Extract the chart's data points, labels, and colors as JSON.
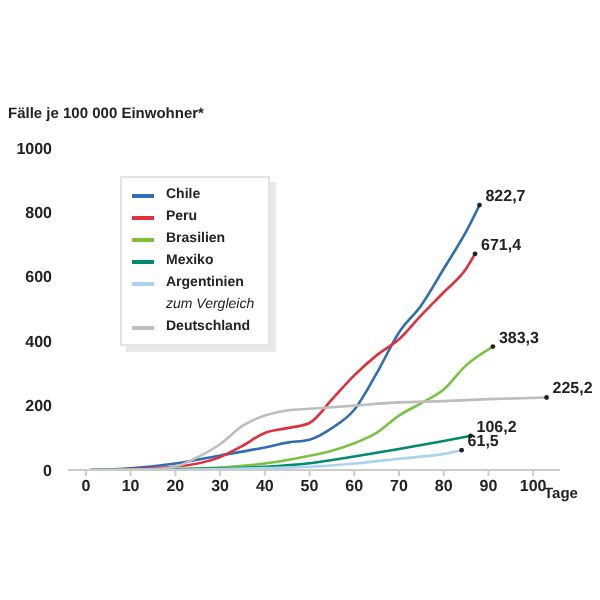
{
  "chart_data": {
    "type": "line",
    "ylabel": "Fälle je 100 000 Einwohner*",
    "xlabel": "Tage",
    "xlim": [
      -4,
      106
    ],
    "xticks": [
      0,
      10,
      20,
      30,
      40,
      50,
      60,
      70,
      80,
      90,
      100
    ],
    "ylim": [
      0,
      1000
    ],
    "yticks": [
      0,
      200,
      400,
      600,
      800,
      1000
    ],
    "grid": false,
    "legend": "top left",
    "marker": "none",
    "line_style": "solid",
    "annotations": [
      "zum Vergleich"
    ],
    "series": [
      {
        "name": "Chile",
        "color": "#2f6db5",
        "x": [
          1,
          10,
          20,
          30,
          40,
          45,
          50,
          55,
          60,
          65,
          70,
          75,
          80,
          85,
          88
        ],
        "values": [
          0,
          5,
          20,
          45,
          70,
          85,
          94,
          130,
          187,
          300,
          427,
          512,
          625,
          740,
          822.7
        ],
        "value_labels": [
          null,
          null,
          null,
          null,
          null,
          null,
          null,
          null,
          null,
          null,
          null,
          null,
          null,
          null,
          "822,7"
        ]
      },
      {
        "name": "Peru",
        "color": "#e0303f",
        "x": [
          1,
          10,
          20,
          30,
          35,
          40,
          45,
          50,
          55,
          60,
          65,
          70,
          75,
          80,
          85,
          87
        ],
        "values": [
          0,
          3,
          10,
          40,
          75,
          115,
          130,
          146,
          219,
          294,
          356,
          406,
          481,
          552,
          625,
          671.4
        ],
        "value_labels": [
          null,
          null,
          null,
          null,
          null,
          null,
          null,
          null,
          null,
          null,
          null,
          null,
          null,
          null,
          null,
          "671,4"
        ]
      },
      {
        "name": "Brasilien",
        "color": "#7cc242",
        "x": [
          1,
          20,
          30,
          40,
          50,
          55,
          60,
          65,
          70,
          75,
          80,
          85,
          91
        ],
        "values": [
          0,
          3,
          8,
          20,
          44,
          60,
          83,
          115,
          169,
          208,
          250,
          325,
          383.3
        ],
        "value_labels": [
          null,
          null,
          null,
          null,
          null,
          null,
          null,
          null,
          null,
          null,
          null,
          null,
          "383,3"
        ]
      },
      {
        "name": "Mexiko",
        "color": "#008a6e",
        "x": [
          1,
          20,
          30,
          40,
          50,
          60,
          70,
          80,
          86
        ],
        "values": [
          0,
          2,
          5,
          10,
          21,
          42,
          65,
          90,
          106.2
        ],
        "value_labels": [
          null,
          null,
          null,
          null,
          null,
          null,
          null,
          null,
          "106,2"
        ]
      },
      {
        "name": "Argentinien",
        "color": "#a9d3f0",
        "x": [
          1,
          20,
          30,
          40,
          50,
          60,
          70,
          80,
          84
        ],
        "values": [
          0,
          1,
          3,
          6,
          10,
          20,
          35,
          50,
          61.5
        ],
        "value_labels": [
          null,
          null,
          null,
          null,
          null,
          null,
          null,
          null,
          "61,5"
        ]
      },
      {
        "name": "Deutschland",
        "color": "#bdbdbd",
        "x": [
          1,
          15,
          20,
          25,
          30,
          35,
          40,
          45,
          50,
          60,
          70,
          80,
          90,
          103
        ],
        "values": [
          0,
          3,
          10,
          40,
          80,
          137,
          169,
          185,
          190,
          200,
          210,
          214,
          220,
          225.2
        ],
        "value_labels": [
          null,
          null,
          null,
          null,
          null,
          null,
          null,
          null,
          null,
          null,
          null,
          null,
          null,
          "225,2"
        ]
      }
    ]
  }
}
